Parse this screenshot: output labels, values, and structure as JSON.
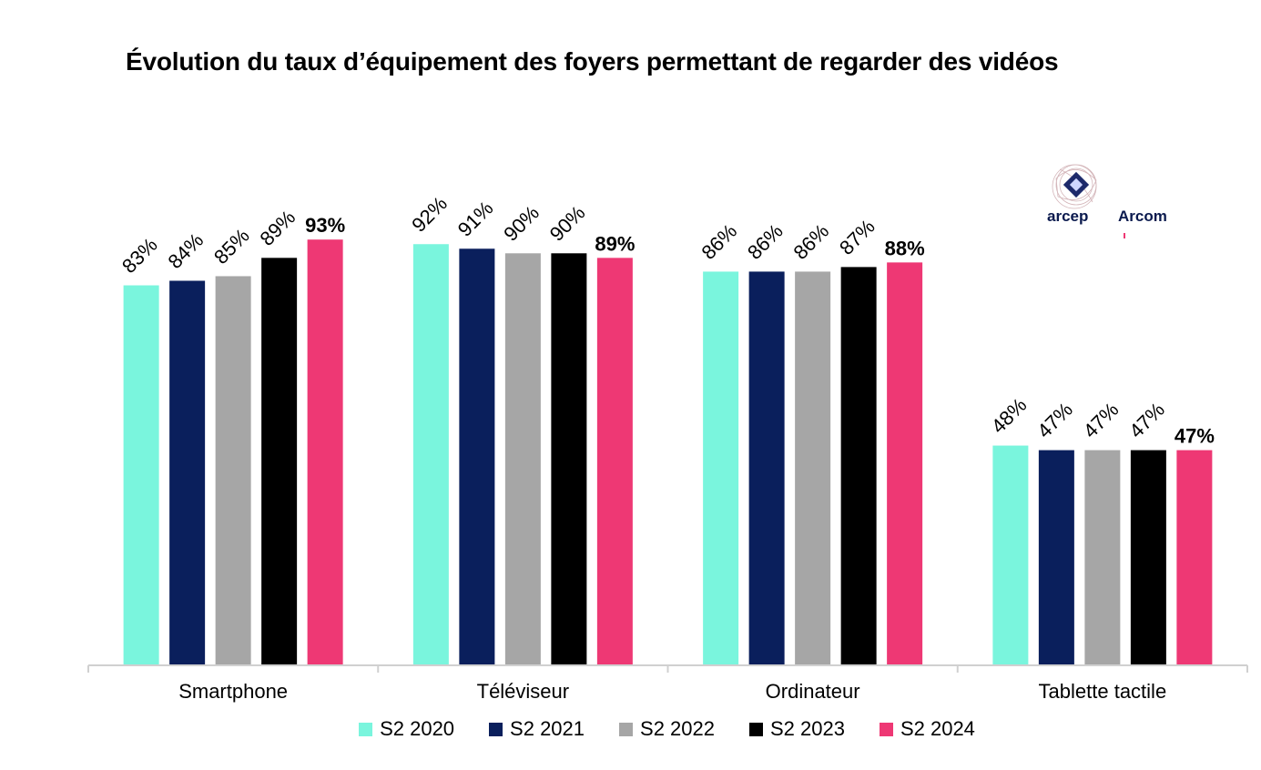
{
  "chart_data": {
    "type": "bar",
    "title": "Évolution du taux d’équipement des foyers permettant de regarder des vidéos",
    "categories": [
      "Smartphone",
      "Téléviseur",
      "Ordinateur",
      "Tablette tactile"
    ],
    "series": [
      {
        "name": "S2 2020",
        "color": "#7af5dd",
        "values": [
          83,
          92,
          86,
          48
        ],
        "labels": [
          "83%",
          "92%",
          "86%",
          "48%"
        ]
      },
      {
        "name": "S2 2021",
        "color": "#0a1f5c",
        "values": [
          84,
          91,
          86,
          47
        ],
        "labels": [
          "84%",
          "91%",
          "86%",
          "47%"
        ]
      },
      {
        "name": "S2 2022",
        "color": "#a6a6a6",
        "values": [
          85,
          90,
          86,
          47
        ],
        "labels": [
          "85%",
          "90%",
          "86%",
          "47%"
        ]
      },
      {
        "name": "S2 2023",
        "color": "#000000",
        "values": [
          89,
          90,
          87,
          47
        ],
        "labels": [
          "89%",
          "90%",
          "87%",
          "47%"
        ]
      },
      {
        "name": "S2 2024",
        "color": "#ee3874",
        "values": [
          93,
          89,
          88,
          47
        ],
        "labels": [
          "93%",
          "89%",
          "88%",
          "47%"
        ]
      }
    ],
    "ylim": [
      0,
      100
    ],
    "grid": false,
    "legend_position": "bottom",
    "xlabel": "",
    "ylabel": ""
  },
  "logos": {
    "arcep": "arcep",
    "arcom": "Arcom"
  }
}
